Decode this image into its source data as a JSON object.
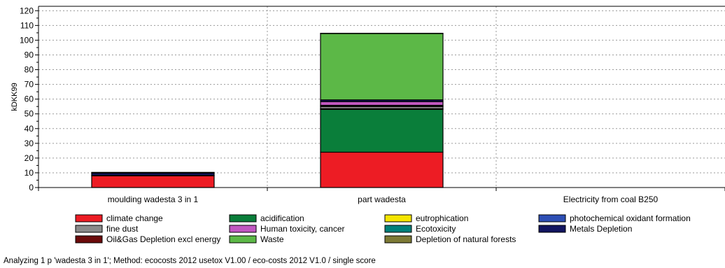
{
  "chart_data": {
    "type": "bar",
    "stacked": true,
    "ylabel": "kDKK99",
    "ylim": [
      0,
      123
    ],
    "yticks": [
      0,
      10,
      20,
      30,
      40,
      50,
      60,
      70,
      80,
      90,
      100,
      110,
      120
    ],
    "grid": true,
    "legend_position": "bottom",
    "categories": [
      "moulding wadesta 3 in 1",
      "part wadesta",
      "Electricity from coal B250"
    ],
    "series": [
      {
        "name": "climate change",
        "color": "#ed1c24",
        "values": [
          8,
          24,
          0
        ]
      },
      {
        "name": "acidification",
        "color": "#0a7e3a",
        "values": [
          0,
          29,
          0
        ]
      },
      {
        "name": "eutrophication",
        "color": "#f5e500",
        "values": [
          0,
          0.2,
          0
        ]
      },
      {
        "name": "photochemical oxidant formation",
        "color": "#2e4fb5",
        "values": [
          0,
          0.3,
          0
        ]
      },
      {
        "name": "fine dust",
        "color": "#8a8a8a",
        "values": [
          0,
          1.5,
          0
        ]
      },
      {
        "name": "Human toxicity, cancer",
        "color": "#c158c1",
        "values": [
          0.3,
          2.5,
          0
        ]
      },
      {
        "name": "Ecotoxicity",
        "color": "#00807a",
        "values": [
          0,
          0.5,
          0
        ]
      },
      {
        "name": "Metals Depletion",
        "color": "#121560",
        "values": [
          1.5,
          1.2,
          0
        ]
      },
      {
        "name": "Oil&Gas Depletion excl energy",
        "color": "#6b0a0a",
        "values": [
          0,
          0.3,
          0
        ]
      },
      {
        "name": "Waste",
        "color": "#5cb847",
        "values": [
          0.5,
          45,
          0
        ]
      },
      {
        "name": "Depletion of natural forests",
        "color": "#7d7a35",
        "values": [
          0,
          0.2,
          0
        ]
      }
    ],
    "stack_order": [
      "climate change",
      "acidification",
      "eutrophication",
      "photochemical oxidant formation",
      "fine dust",
      "Oil&Gas Depletion excl energy",
      "Ecotoxicity",
      "Human toxicity, cancer",
      "Metals Depletion",
      "Waste",
      "Depletion of natural forests"
    ]
  },
  "footer": {
    "caption": "Analyzing 1 p 'wadesta 3 in 1';  Method: ecocosts 2012 usetox V1.00 /  eco-costs 2012 V1.0 / single score"
  }
}
